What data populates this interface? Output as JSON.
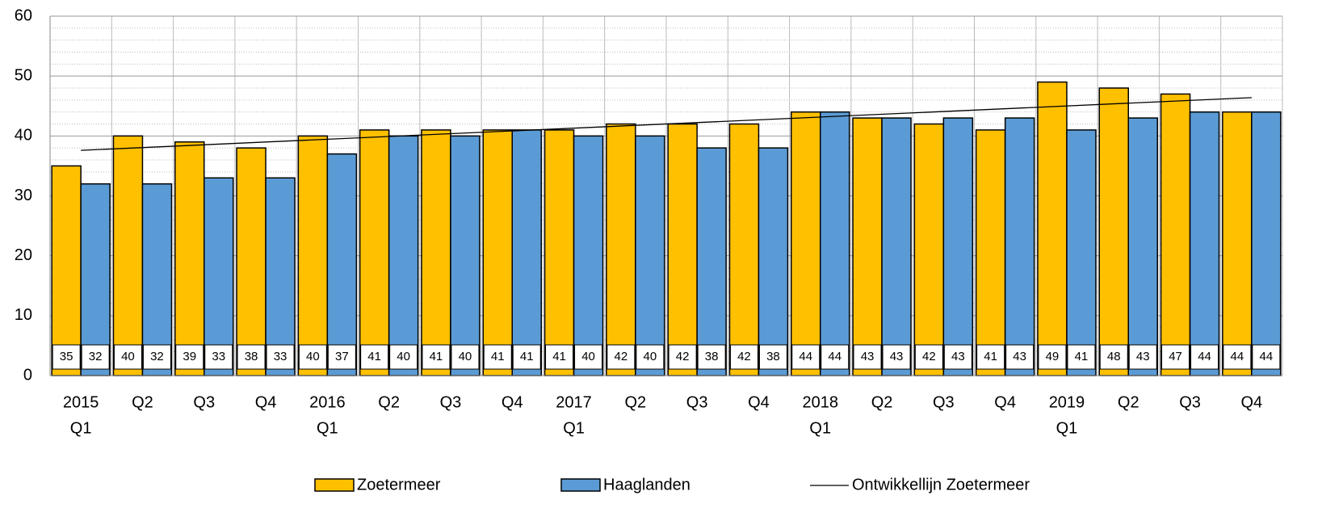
{
  "chart_data": {
    "type": "bar",
    "categories": [
      [
        "2015",
        "Q1"
      ],
      [
        "Q2"
      ],
      [
        "Q3"
      ],
      [
        "Q4"
      ],
      [
        "2016",
        "Q1"
      ],
      [
        "Q2"
      ],
      [
        "Q3"
      ],
      [
        "Q4"
      ],
      [
        "2017",
        "Q1"
      ],
      [
        "Q2"
      ],
      [
        "Q3"
      ],
      [
        "Q4"
      ],
      [
        "2018",
        "Q1"
      ],
      [
        "Q2"
      ],
      [
        "Q3"
      ],
      [
        "Q4"
      ],
      [
        "2019",
        "Q1"
      ],
      [
        "Q2"
      ],
      [
        "Q3"
      ],
      [
        "Q4"
      ]
    ],
    "series": [
      {
        "name": "Zoetermeer",
        "color": "#ffc000",
        "values": [
          35,
          40,
          39,
          38,
          40,
          41,
          41,
          41,
          41,
          42,
          42,
          42,
          44,
          43,
          42,
          41,
          49,
          48,
          47,
          44
        ]
      },
      {
        "name": "Haaglanden",
        "color": "#5b9bd5",
        "values": [
          32,
          32,
          33,
          33,
          37,
          40,
          40,
          41,
          40,
          40,
          38,
          38,
          44,
          43,
          43,
          43,
          41,
          43,
          44,
          44
        ]
      }
    ],
    "trend": {
      "name": "Ontwikkellijn Zoetermeer",
      "color": "#000000",
      "values": [
        37.6,
        46.4
      ]
    },
    "ylim": [
      0,
      60
    ],
    "yticks": [
      0,
      10,
      20,
      30,
      40,
      50,
      60
    ],
    "minor_yticks": [
      2,
      4,
      6,
      8,
      12,
      14,
      16,
      18,
      22,
      24,
      26,
      28,
      32,
      34,
      36,
      38,
      42,
      44,
      46,
      48,
      52,
      54,
      56,
      58
    ],
    "grid": true
  }
}
